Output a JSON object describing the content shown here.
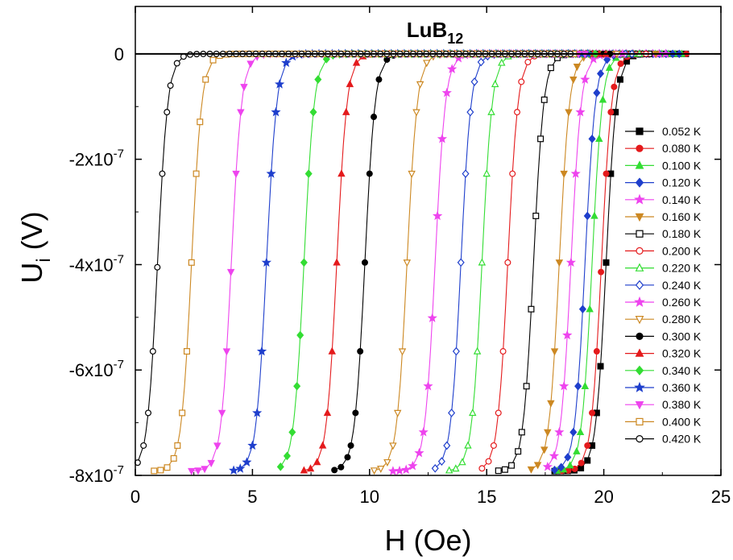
{
  "chart_data": {
    "type": "line",
    "title": "LuB",
    "title_sub": "12",
    "xlabel": "H (Oe)",
    "ylabel_main": "U",
    "ylabel_sub": "i",
    "ylabel_unit": " (V)",
    "xlim": [
      0,
      25
    ],
    "ylim": [
      -8e-07,
      9e-08
    ],
    "xticks": [
      0,
      5,
      10,
      15,
      20,
      25
    ],
    "xtick_labels": [
      "0",
      "5",
      "10",
      "15",
      "20",
      "25"
    ],
    "yticks": [
      0,
      -2e-07,
      -4e-07,
      -6e-07,
      -8e-07
    ],
    "ytick_labels": [
      {
        "mant": "0",
        "exp": ""
      },
      {
        "mant": "-2x10",
        "exp": "-7"
      },
      {
        "mant": "-4x10",
        "exp": "-7"
      },
      {
        "mant": "-6x10",
        "exp": "-7"
      },
      {
        "mant": "-8x10",
        "exp": "-7"
      }
    ],
    "grid": false,
    "legend_position": "right",
    "zero_line": true,
    "series": [
      {
        "name": "0.052 K",
        "color": "#000000",
        "marker": "square",
        "filled": true,
        "Hc": 20.1,
        "Hstart": 17.9,
        "Hend": 23.7
      },
      {
        "name": "0.080 K",
        "color": "#e41a1c",
        "marker": "circle",
        "filled": true,
        "Hc": 19.9,
        "Hstart": 18.2,
        "Hend": 23.6
      },
      {
        "name": "0.100 K",
        "color": "#33dd33",
        "marker": "triangle",
        "filled": true,
        "Hc": 19.5,
        "Hstart": 18.0,
        "Hend": 23.5
      },
      {
        "name": "0.120 K",
        "color": "#1f3fcc",
        "marker": "diamond",
        "filled": true,
        "Hc": 19.2,
        "Hstart": 17.9,
        "Hend": 23.3
      },
      {
        "name": "0.140 K",
        "color": "#ee44ee",
        "marker": "star",
        "filled": true,
        "Hc": 18.6,
        "Hstart": 17.6,
        "Hend": 22.8
      },
      {
        "name": "0.160 K",
        "color": "#cc8822",
        "marker": "triangle-down",
        "filled": true,
        "Hc": 18.1,
        "Hstart": 16.9,
        "Hend": 22.5
      },
      {
        "name": "0.180 K",
        "color": "#000000",
        "marker": "square",
        "filled": false,
        "Hc": 17.0,
        "Hstart": 15.5,
        "Hend": 22.2
      },
      {
        "name": "0.200 K",
        "color": "#e41a1c",
        "marker": "circle",
        "filled": false,
        "Hc": 15.9,
        "Hstart": 14.8,
        "Hend": 21.9
      },
      {
        "name": "0.220 K",
        "color": "#33dd33",
        "marker": "triangle",
        "filled": false,
        "Hc": 14.8,
        "Hstart": 13.4,
        "Hend": 21.6
      },
      {
        "name": "0.240 K",
        "color": "#1f3fcc",
        "marker": "diamond",
        "filled": false,
        "Hc": 13.9,
        "Hstart": 12.8,
        "Hend": 21.3
      },
      {
        "name": "0.260 K",
        "color": "#ee44ee",
        "marker": "star",
        "filled": true,
        "Hc": 12.8,
        "Hstart": 11.0,
        "Hend": 21.0
      },
      {
        "name": "0.280 K",
        "color": "#cc8822",
        "marker": "triangle-down",
        "filled": false,
        "Hc": 11.6,
        "Hstart": 10.2,
        "Hend": 20.7
      },
      {
        "name": "0.300 K",
        "color": "#000000",
        "marker": "circle",
        "filled": true,
        "Hc": 9.8,
        "Hstart": 8.5,
        "Hend": 20.4
      },
      {
        "name": "0.320 K",
        "color": "#e41a1c",
        "marker": "triangle",
        "filled": true,
        "Hc": 8.6,
        "Hstart": 7.2,
        "Hend": 20.1
      },
      {
        "name": "0.340 K",
        "color": "#33dd33",
        "marker": "diamond",
        "filled": true,
        "Hc": 7.2,
        "Hstart": 6.2,
        "Hend": 19.8
      },
      {
        "name": "0.360 K",
        "color": "#1f3fcc",
        "marker": "star",
        "filled": true,
        "Hc": 5.6,
        "Hstart": 4.2,
        "Hend": 19.5
      },
      {
        "name": "0.380 K",
        "color": "#ee44ee",
        "marker": "triangle-down",
        "filled": true,
        "Hc": 4.1,
        "Hstart": 2.4,
        "Hend": 19.2
      },
      {
        "name": "0.400 K",
        "color": "#cc8822",
        "marker": "square",
        "filled": false,
        "Hc": 2.4,
        "Hstart": 0.8,
        "Hend": 18.9
      },
      {
        "name": "0.420 K",
        "color": "#000000",
        "marker": "circle",
        "filled": false,
        "Hc": 0.95,
        "Hstart": 0.1,
        "Hend": 18.6
      }
    ]
  }
}
